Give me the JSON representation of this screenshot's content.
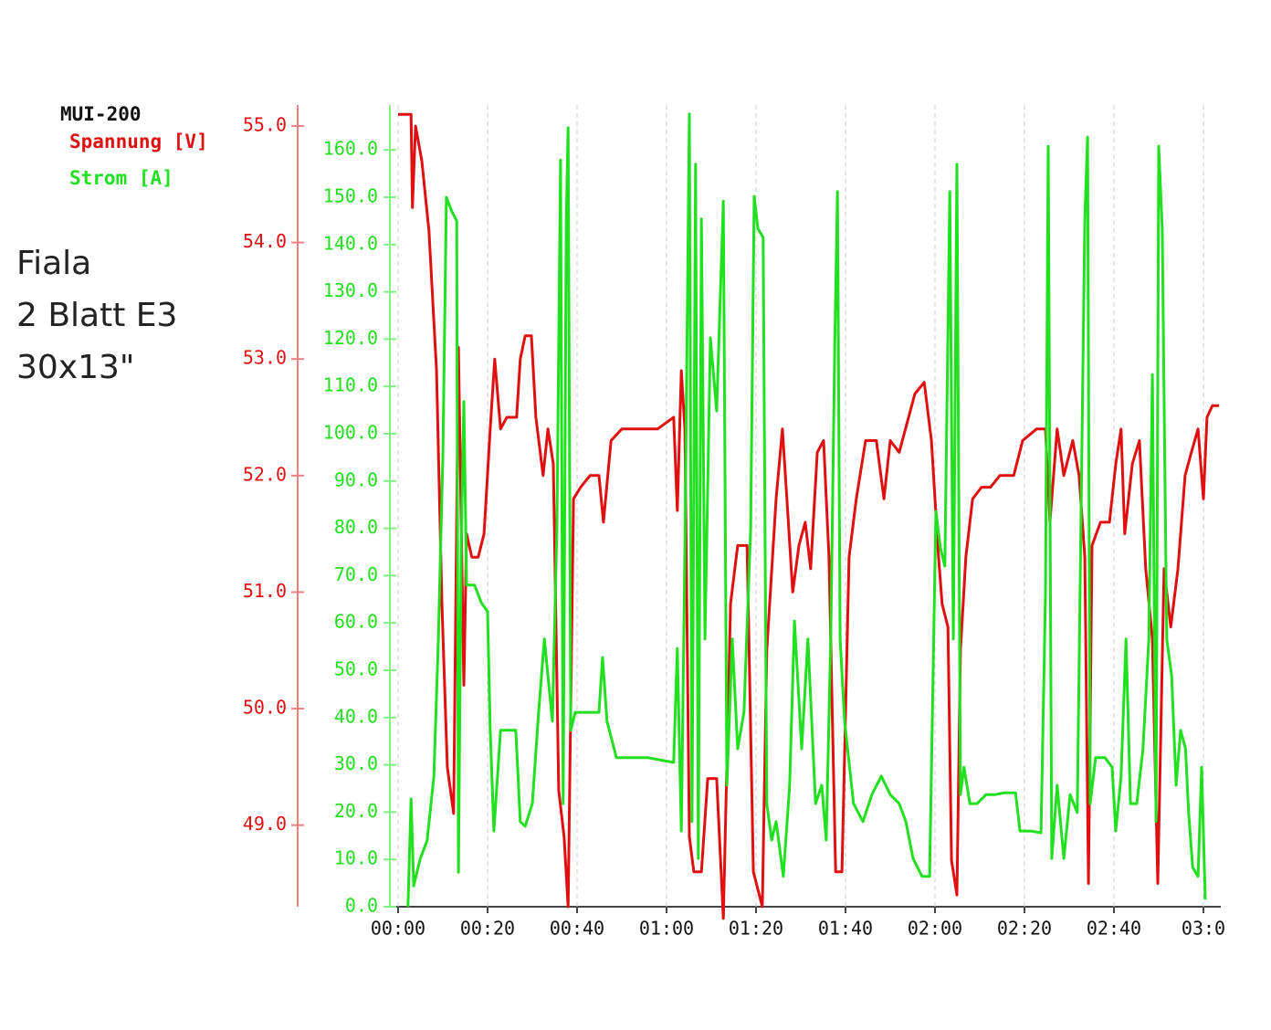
{
  "chart_data": {
    "type": "line",
    "legend_title": "MUI-200",
    "annotations": [
      "Fiala",
      "2 Blatt E3",
      "30x13\""
    ],
    "xlim": [
      -2,
      184
    ],
    "xticks": [
      {
        "value": 0,
        "label": "00:00"
      },
      {
        "value": 20,
        "label": "00:20"
      },
      {
        "value": 40,
        "label": "00:40"
      },
      {
        "value": 60,
        "label": "01:00"
      },
      {
        "value": 80,
        "label": "01:20"
      },
      {
        "value": 100,
        "label": "01:40"
      },
      {
        "value": 120,
        "label": "02:00"
      },
      {
        "value": 140,
        "label": "02:20"
      },
      {
        "value": 160,
        "label": "02:40"
      },
      {
        "value": 180,
        "label": "03:0"
      }
    ],
    "grid": true,
    "ylim": [
      48.3,
      55.18
    ],
    "yticks": [
      {
        "value": 49,
        "label": "49.0"
      },
      {
        "value": 50,
        "label": "50.0"
      },
      {
        "value": 51,
        "label": "51.0"
      },
      {
        "value": 52,
        "label": "52.0"
      },
      {
        "value": 53,
        "label": "53.0"
      },
      {
        "value": 54,
        "label": "54.0"
      },
      {
        "value": 55,
        "label": "55.0"
      }
    ],
    "y2lim": [
      0,
      169.5
    ],
    "y2ticks": [
      {
        "value": 0,
        "label": "0.0"
      },
      {
        "value": 10,
        "label": "10.0"
      },
      {
        "value": 20,
        "label": "20.0"
      },
      {
        "value": 30,
        "label": "30.0"
      },
      {
        "value": 40,
        "label": "40.0"
      },
      {
        "value": 50,
        "label": "50.0"
      },
      {
        "value": 60,
        "label": "60.0"
      },
      {
        "value": 70,
        "label": "70.0"
      },
      {
        "value": 80,
        "label": "80.0"
      },
      {
        "value": 90,
        "label": "90.0"
      },
      {
        "value": 100,
        "label": "100.0"
      },
      {
        "value": 110,
        "label": "110.0"
      },
      {
        "value": 120,
        "label": "120.0"
      },
      {
        "value": 130,
        "label": "130.0"
      },
      {
        "value": 140,
        "label": "140.0"
      },
      {
        "value": 150,
        "label": "150.0"
      },
      {
        "value": 160,
        "label": "160.0"
      }
    ],
    "series": [
      {
        "name": "Spannung [V]",
        "color": "#e01010",
        "axis": "y",
        "x": [
          0,
          2.9,
          3.2,
          3.9,
          5.3,
          6.9,
          8.6,
          9.8,
          11,
          12.4,
          13.5,
          14.7,
          15.3,
          16.5,
          17.9,
          19.2,
          20.6,
          21.6,
          22.9,
          24.3,
          26.5,
          27.3,
          28.4,
          29.8,
          30.8,
          32.4,
          33.5,
          34.7,
          35.9,
          37.1,
          38,
          39.2,
          40.8,
          42.9,
          44.9,
          45.9,
          47.6,
          50,
          53.9,
          58,
          61.6,
          62.4,
          63.3,
          64.1,
          65.1,
          66.1,
          67.8,
          69.2,
          71.2,
          72.7,
          74.3,
          75.9,
          78,
          79.4,
          81.4,
          82.4,
          84.5,
          85.9,
          86.9,
          88.2,
          89.6,
          91,
          92.2,
          93.7,
          95.1,
          96.3,
          97.8,
          99.2,
          100.8,
          102.4,
          104.5,
          106.9,
          108.6,
          110,
          112,
          114.1,
          115.5,
          117.6,
          119.2,
          120.8,
          121.6,
          122.9,
          123.7,
          124.9,
          125.7,
          126.9,
          128.4,
          130.4,
          132.4,
          134.5,
          137.6,
          139.6,
          142.7,
          144.7,
          145.7,
          147.3,
          148.8,
          150.8,
          152.2,
          153.5,
          154.3,
          155.1,
          157,
          159,
          160.4,
          161.6,
          162.4,
          164.1,
          165.7,
          167.1,
          168.6,
          169.8,
          171.2,
          172.7,
          174.3,
          175.9,
          177.3,
          178.8,
          180,
          180.8,
          182,
          183.5
        ],
        "values": [
          55.1,
          55.1,
          54.3,
          55.0,
          54.7,
          54.1,
          52.9,
          50.9,
          49.5,
          49.1,
          53.1,
          50.2,
          51.5,
          51.3,
          51.3,
          51.5,
          52.4,
          53.0,
          52.4,
          52.5,
          52.5,
          53.0,
          53.2,
          53.2,
          52.5,
          52.0,
          52.4,
          52.1,
          49.3,
          48.9,
          48.3,
          51.8,
          51.9,
          52.0,
          52.0,
          51.6,
          52.3,
          52.4,
          52.4,
          52.4,
          52.5,
          51.7,
          52.9,
          52.4,
          48.9,
          48.6,
          48.6,
          49.4,
          49.4,
          48.2,
          50.9,
          51.4,
          51.4,
          48.6,
          48.3,
          50.5,
          51.8,
          52.4,
          51.8,
          51.0,
          51.4,
          51.6,
          51.2,
          52.2,
          52.3,
          51.3,
          48.6,
          48.6,
          51.3,
          51.8,
          52.3,
          52.3,
          51.8,
          52.3,
          52.2,
          52.5,
          52.7,
          52.8,
          52.3,
          51.3,
          50.9,
          50.7,
          48.7,
          48.4,
          50.5,
          51.3,
          51.8,
          51.9,
          51.9,
          52.0,
          52.0,
          52.3,
          52.4,
          52.4,
          51.6,
          52.4,
          52.0,
          52.3,
          52.0,
          51.3,
          48.5,
          51.4,
          51.6,
          51.6,
          52.1,
          52.4,
          51.5,
          52.1,
          52.3,
          51.2,
          50.6,
          48.5,
          51.2,
          50.7,
          51.2,
          52.0,
          52.2,
          52.4,
          51.8,
          52.5,
          52.6,
          52.6
        ]
      },
      {
        "name": "Strom [A]",
        "color": "#20e020",
        "axis": "y2",
        "x": [
          2.2,
          2.9,
          3.5,
          4.9,
          6.5,
          8,
          9,
          10,
          10.8,
          12,
          13.1,
          13.5,
          14.1,
          14.7,
          15.3,
          17.1,
          18.6,
          20,
          20.6,
          21.4,
          22.9,
          26.3,
          27.3,
          28.4,
          30,
          31.4,
          32.7,
          33.5,
          34.5,
          35.5,
          36.3,
          36.9,
          37.6,
          38,
          38.6,
          39.6,
          41.6,
          43.7,
          44.9,
          45.7,
          46.7,
          48.8,
          51.8,
          55.9,
          61.6,
          62.4,
          63.3,
          64.1,
          65.1,
          65.7,
          66.5,
          67.1,
          67.8,
          68.6,
          69.8,
          71.2,
          72.7,
          73.5,
          74.7,
          75.9,
          77.3,
          78.8,
          79.6,
          80.4,
          81.6,
          82.4,
          83.5,
          84.5,
          86.1,
          87.5,
          88.6,
          90.2,
          91.6,
          93.3,
          94.7,
          95.7,
          96.7,
          97.6,
          98.2,
          98.8,
          99.8,
          101.8,
          103.9,
          105.9,
          108,
          110,
          112,
          113.5,
          115.1,
          117.1,
          118.8,
          120.2,
          121.2,
          122.2,
          123.3,
          124.1,
          124.9,
          125.7,
          126.5,
          127.8,
          129.4,
          131.4,
          133.5,
          135.5,
          138,
          139,
          141.6,
          143.7,
          144.7,
          145.3,
          146.1,
          147.3,
          148.8,
          150.2,
          151.8,
          153.5,
          154.1,
          154.7,
          155.9,
          158,
          159.6,
          160.4,
          161.6,
          162.7,
          163.7,
          165.1,
          166.5,
          167.8,
          168.6,
          169.4,
          170,
          170.8,
          171.8,
          172.9,
          173.9,
          174.9,
          176,
          176.7,
          177.6,
          178.8,
          179.6,
          180.4
        ],
        "values": [
          0,
          22.8,
          4.4,
          10,
          14,
          27.6,
          56.6,
          95,
          150,
          147,
          145,
          7.3,
          75.9,
          106.8,
          68,
          68,
          64.3,
          62.4,
          37.3,
          16,
          37.3,
          37.3,
          18,
          17,
          21.8,
          41.1,
          56.6,
          48.8,
          39.2,
          79.7,
          157.9,
          21.8,
          145.4,
          164.7,
          37.3,
          41.1,
          41.1,
          41.1,
          41.1,
          52.7,
          39.2,
          31.5,
          31.5,
          31.5,
          30.5,
          54.6,
          16,
          75.9,
          167.6,
          18,
          157,
          10.2,
          145.4,
          56.6,
          120.3,
          104.8,
          149.2,
          25.7,
          56.6,
          33.4,
          41.1,
          79.7,
          150.2,
          143.4,
          141.5,
          21.8,
          14.1,
          18,
          6.4,
          25.7,
          60.4,
          33.4,
          56.6,
          21.8,
          25.7,
          14.1,
          56.6,
          118.3,
          151.2,
          56.6,
          39.2,
          21.8,
          18,
          23.7,
          27.6,
          23.7,
          21.8,
          18,
          10.2,
          6.4,
          6.4,
          83.6,
          75.9,
          72,
          151.2,
          56.6,
          157,
          23.7,
          29.5,
          21.8,
          21.8,
          23.7,
          23.7,
          24.1,
          24.1,
          16,
          16,
          15.6,
          66.2,
          160.8,
          10.2,
          25.7,
          10.2,
          23.7,
          19.9,
          145.4,
          162.7,
          21.8,
          31.5,
          31.5,
          29.5,
          16,
          27.6,
          56.6,
          21.8,
          21.8,
          33.4,
          56.6,
          112.5,
          18,
          160.8,
          143.4,
          56.6,
          48.8,
          25.7,
          37.3,
          33.4,
          19.9,
          8.3,
          6.4,
          29.5,
          1.5
        ]
      }
    ]
  }
}
